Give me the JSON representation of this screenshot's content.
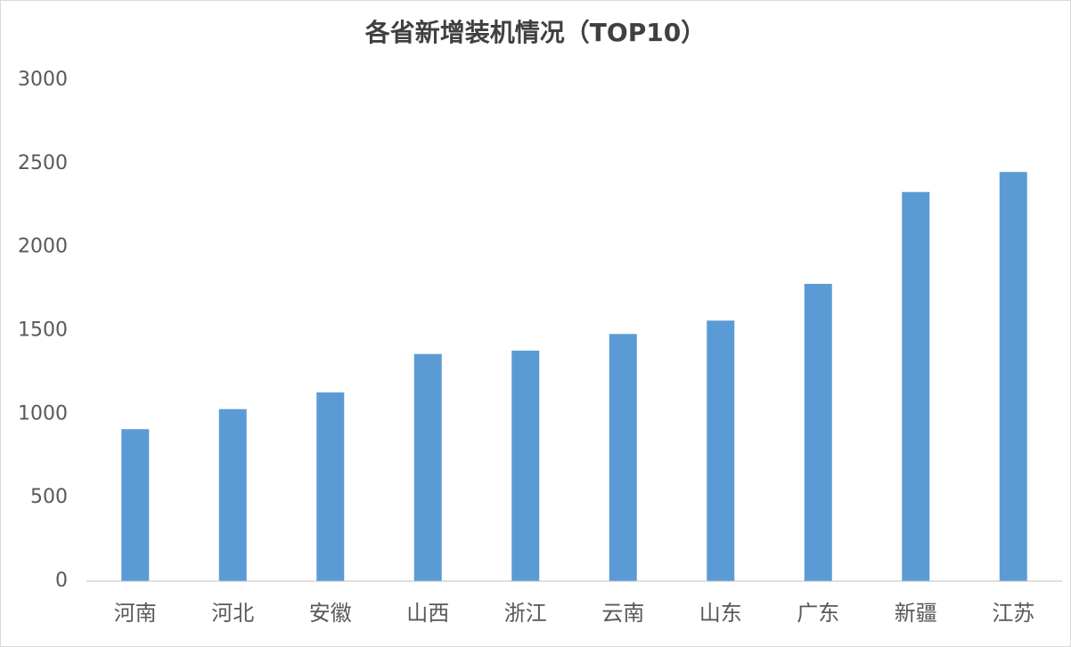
{
  "chart_data": {
    "type": "bar",
    "title": "各省新增装机情况（TOP10）",
    "categories": [
      "河南",
      "河北",
      "安徽",
      "山西",
      "浙江",
      "云南",
      "山东",
      "广东",
      "新疆",
      "江苏"
    ],
    "values": [
      910,
      1030,
      1130,
      1360,
      1380,
      1480,
      1560,
      1780,
      2330,
      2450
    ],
    "color": "#5b9bd5",
    "ylim": [
      0,
      3000
    ],
    "yticks": [
      0,
      500,
      1000,
      1500,
      2000,
      2500,
      3000
    ],
    "grid": false
  }
}
